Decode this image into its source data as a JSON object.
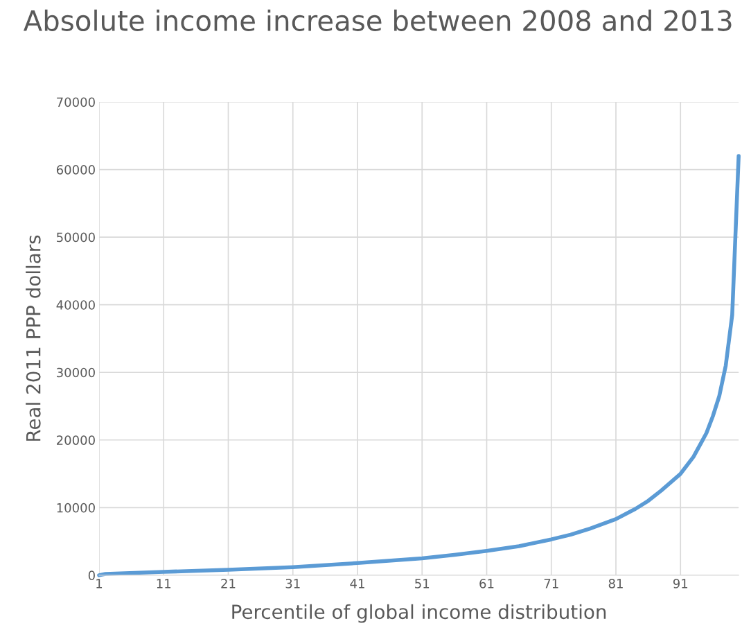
{
  "chart_data": {
    "type": "line",
    "title": "Absolute income increase between 2008 and 2013",
    "xlabel": "Percentile of global income distribution",
    "ylabel": "Real 2011 PPP dollars",
    "series": [
      {
        "color": "#5b9bd5",
        "x": [
          1,
          2,
          5,
          11,
          21,
          31,
          41,
          51,
          56,
          61,
          66,
          71,
          74,
          77,
          81,
          84,
          86,
          88,
          91,
          93,
          95,
          96,
          97,
          98,
          99,
          100
        ],
        "values": [
          0,
          200,
          300,
          500,
          800,
          1200,
          1800,
          2500,
          3000,
          3600,
          4300,
          5300,
          6000,
          6900,
          8300,
          9800,
          11000,
          12500,
          15000,
          17500,
          21000,
          23500,
          26500,
          31000,
          38500,
          62000
        ]
      }
    ],
    "xlim": [
      1,
      100
    ],
    "xticks": [
      1,
      11,
      21,
      31,
      41,
      51,
      61,
      71,
      81,
      91
    ],
    "ylim": [
      0,
      70000
    ],
    "yticks": [
      0,
      10000,
      20000,
      30000,
      40000,
      50000,
      60000,
      70000
    ],
    "grid": true,
    "marker": "none",
    "line_style": "solid"
  }
}
